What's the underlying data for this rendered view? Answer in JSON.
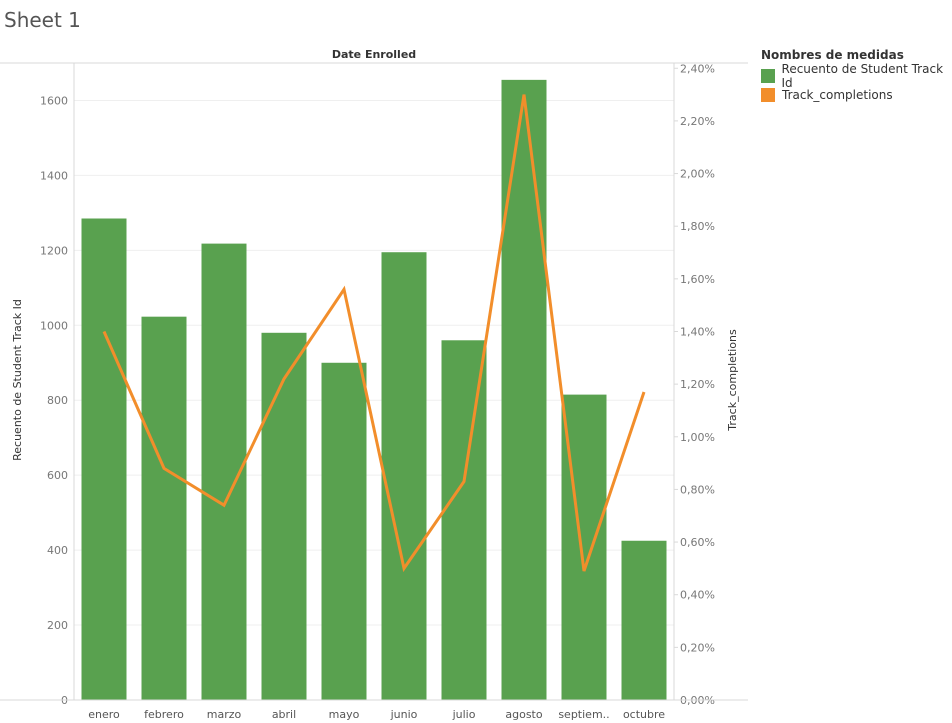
{
  "sheet": {
    "title": "Sheet 1"
  },
  "legend": {
    "title": "Nombres de medidas",
    "items": [
      {
        "label": "Recuento de Student Track Id",
        "color": "#59a14f"
      },
      {
        "label": "Track_completions",
        "color": "#f28e2b"
      }
    ]
  },
  "chart_data": {
    "type": "bar",
    "title": "Date Enrolled",
    "categories": [
      "enero",
      "febrero",
      "marzo",
      "abril",
      "mayo",
      "junio",
      "julio",
      "agosto",
      "septiem..",
      "octubre"
    ],
    "series": [
      {
        "name": "Recuento de Student Track Id",
        "type": "bar",
        "axis": "left",
        "values": [
          1285,
          1023,
          1218,
          980,
          900,
          1195,
          960,
          1655,
          815,
          425
        ]
      },
      {
        "name": "Track_completions",
        "type": "line",
        "axis": "right",
        "values": [
          1.4,
          0.88,
          0.74,
          1.22,
          1.56,
          0.5,
          0.83,
          2.3,
          0.49,
          1.17
        ]
      }
    ],
    "ylabel": "Recuento de Student Track Id",
    "ylim": [
      0,
      1700
    ],
    "yticks": [
      0,
      200,
      400,
      600,
      800,
      1000,
      1200,
      1400,
      1600
    ],
    "y2label": "Track_completions",
    "y2lim": [
      0,
      2.42
    ],
    "y2ticks": [
      "0,00%",
      "0,20%",
      "0,40%",
      "0,60%",
      "0,80%",
      "1,00%",
      "1,20%",
      "1,40%",
      "1,60%",
      "1,80%",
      "2,00%",
      "2,20%",
      "2,40%"
    ],
    "y2tick_values": [
      0,
      0.2,
      0.4,
      0.6,
      0.8,
      1.0,
      1.2,
      1.4,
      1.6,
      1.8,
      2.0,
      2.2,
      2.4
    ],
    "grid": true
  }
}
